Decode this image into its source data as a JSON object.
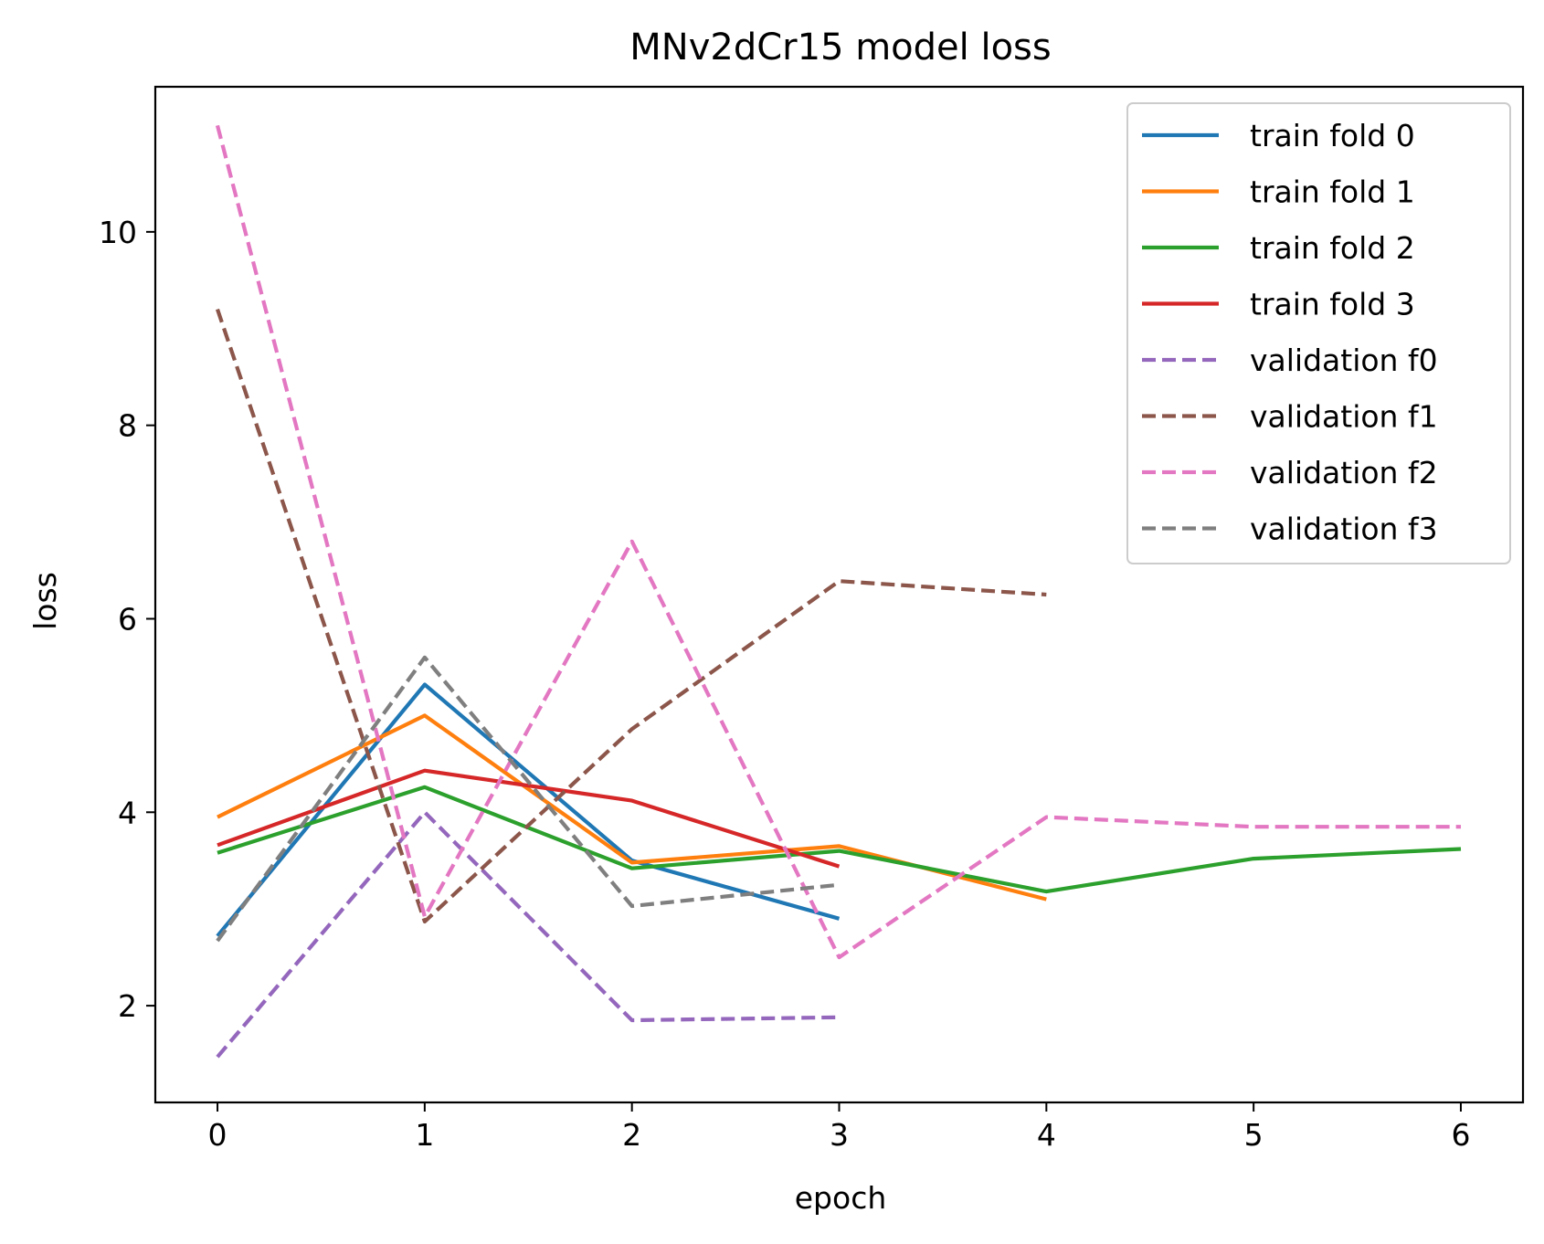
{
  "chart_data": {
    "type": "line",
    "title": "MNv2dCr15 model loss",
    "xlabel": "epoch",
    "ylabel": "loss",
    "xlim": [
      -0.3,
      6.3
    ],
    "ylim": [
      1.0,
      11.5
    ],
    "xticks": [
      0,
      1,
      2,
      3,
      4,
      5,
      6
    ],
    "yticks": [
      2,
      4,
      6,
      8,
      10
    ],
    "xtick_labels": [
      "0",
      "1",
      "2",
      "3",
      "4",
      "5",
      "6"
    ],
    "ytick_labels": [
      "2",
      "4",
      "6",
      "8",
      "10"
    ],
    "grid": false,
    "legend_position": "top-right",
    "series": [
      {
        "name": "train fold 0",
        "color": "#1f77b4",
        "style": "solid",
        "x": [
          0,
          1,
          2,
          3
        ],
        "values": [
          2.72,
          5.32,
          3.5,
          2.9
        ]
      },
      {
        "name": "train fold 1",
        "color": "#ff7f0e",
        "style": "solid",
        "x": [
          0,
          1,
          2,
          3,
          4
        ],
        "values": [
          3.95,
          5.0,
          3.48,
          3.65,
          3.1
        ]
      },
      {
        "name": "train fold 2",
        "color": "#2ca02c",
        "style": "solid",
        "x": [
          0,
          1,
          2,
          3,
          4,
          5,
          6
        ],
        "values": [
          3.58,
          4.26,
          3.42,
          3.6,
          3.18,
          3.52,
          3.62
        ]
      },
      {
        "name": "train fold 3",
        "color": "#d62728",
        "style": "solid",
        "x": [
          0,
          1,
          2,
          3
        ],
        "values": [
          3.66,
          4.43,
          4.12,
          3.44
        ]
      },
      {
        "name": "validation f0",
        "color": "#9467bd",
        "style": "dashed",
        "x": [
          0,
          1,
          2,
          3
        ],
        "values": [
          1.47,
          4.0,
          1.85,
          1.88
        ]
      },
      {
        "name": "validation f1",
        "color": "#8c564b",
        "style": "dashed",
        "x": [
          0,
          1,
          2,
          3,
          4
        ],
        "values": [
          9.2,
          2.87,
          4.86,
          6.39,
          6.25
        ]
      },
      {
        "name": "validation f2",
        "color": "#e377c2",
        "style": "dashed",
        "x": [
          0,
          1,
          2,
          3,
          4,
          5,
          6
        ],
        "values": [
          11.1,
          2.92,
          6.8,
          2.5,
          3.95,
          3.85,
          3.85
        ]
      },
      {
        "name": "validation f3",
        "color": "#7f7f7f",
        "style": "dashed",
        "x": [
          0,
          1,
          2,
          3
        ],
        "values": [
          2.67,
          5.6,
          3.03,
          3.25
        ]
      }
    ]
  }
}
